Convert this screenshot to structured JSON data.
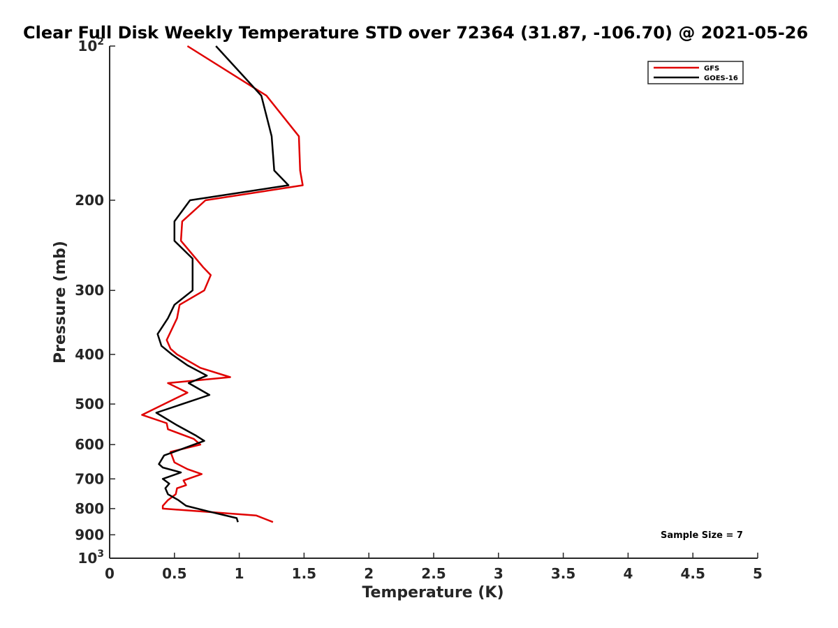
{
  "chart_data": {
    "type": "line",
    "title": "Clear Full Disk Weekly Temperature STD over 72364 (31.87, -106.70) @ 2021-05-26",
    "xlabel": "Temperature (K)",
    "ylabel": "Pressure (mb)",
    "xlim": [
      0,
      5
    ],
    "ylim": [
      100,
      1000
    ],
    "yscale": "log",
    "y_reversed": true,
    "grid": false,
    "legend_position": "top-right",
    "x_ticks": [
      {
        "value": 0,
        "label": "0"
      },
      {
        "value": 0.5,
        "label": "0.5"
      },
      {
        "value": 1,
        "label": "1"
      },
      {
        "value": 1.5,
        "label": "1.5"
      },
      {
        "value": 2,
        "label": "2"
      },
      {
        "value": 2.5,
        "label": "2.5"
      },
      {
        "value": 3,
        "label": "3"
      },
      {
        "value": 3.5,
        "label": "3.5"
      },
      {
        "value": 4,
        "label": "4"
      },
      {
        "value": 4.5,
        "label": "4.5"
      },
      {
        "value": 5,
        "label": "5"
      }
    ],
    "y_ticks": [
      {
        "value": 100,
        "base": "10",
        "exp": "2"
      },
      {
        "value": 200,
        "label": "200"
      },
      {
        "value": 300,
        "label": "300"
      },
      {
        "value": 400,
        "label": "400"
      },
      {
        "value": 500,
        "label": "500"
      },
      {
        "value": 600,
        "label": "600"
      },
      {
        "value": 700,
        "label": "700"
      },
      {
        "value": 800,
        "label": "800"
      },
      {
        "value": 900,
        "label": "900"
      },
      {
        "value": 1000,
        "base": "10",
        "exp": "3"
      }
    ],
    "series": [
      {
        "name": "GFS",
        "color": "#e00000",
        "points": [
          [
            0.6,
            100
          ],
          [
            1.21,
            125
          ],
          [
            1.46,
            150
          ],
          [
            1.47,
            175
          ],
          [
            1.49,
            187
          ],
          [
            0.74,
            200
          ],
          [
            0.56,
            220
          ],
          [
            0.55,
            240
          ],
          [
            0.72,
            270
          ],
          [
            0.78,
            280
          ],
          [
            0.73,
            300
          ],
          [
            0.54,
            320
          ],
          [
            0.52,
            340
          ],
          [
            0.44,
            375
          ],
          [
            0.47,
            390
          ],
          [
            0.52,
            400
          ],
          [
            0.7,
            425
          ],
          [
            0.93,
            443
          ],
          [
            0.45,
            455
          ],
          [
            0.6,
            475
          ],
          [
            0.25,
            525
          ],
          [
            0.44,
            545
          ],
          [
            0.45,
            560
          ],
          [
            0.65,
            585
          ],
          [
            0.7,
            600
          ],
          [
            0.47,
            620
          ],
          [
            0.5,
            650
          ],
          [
            0.6,
            670
          ],
          [
            0.71,
            685
          ],
          [
            0.57,
            705
          ],
          [
            0.59,
            720
          ],
          [
            0.52,
            730
          ],
          [
            0.51,
            750
          ],
          [
            0.45,
            770
          ],
          [
            0.41,
            790
          ],
          [
            0.41,
            800
          ],
          [
            1.13,
            825
          ],
          [
            1.26,
            850
          ]
        ]
      },
      {
        "name": "GOES-16",
        "color": "#000000",
        "points": [
          [
            0.82,
            100
          ],
          [
            1.17,
            125
          ],
          [
            1.25,
            150
          ],
          [
            1.27,
            175
          ],
          [
            1.38,
            187
          ],
          [
            0.62,
            200
          ],
          [
            0.5,
            220
          ],
          [
            0.5,
            240
          ],
          [
            0.64,
            260
          ],
          [
            0.64,
            290
          ],
          [
            0.64,
            300
          ],
          [
            0.5,
            320
          ],
          [
            0.45,
            340
          ],
          [
            0.37,
            365
          ],
          [
            0.4,
            385
          ],
          [
            0.48,
            400
          ],
          [
            0.6,
            420
          ],
          [
            0.75,
            440
          ],
          [
            0.61,
            455
          ],
          [
            0.77,
            480
          ],
          [
            0.36,
            520
          ],
          [
            0.52,
            550
          ],
          [
            0.66,
            575
          ],
          [
            0.73,
            590
          ],
          [
            0.65,
            600
          ],
          [
            0.42,
            630
          ],
          [
            0.38,
            655
          ],
          [
            0.41,
            665
          ],
          [
            0.55,
            680
          ],
          [
            0.41,
            700
          ],
          [
            0.46,
            715
          ],
          [
            0.43,
            730
          ],
          [
            0.45,
            750
          ],
          [
            0.53,
            770
          ],
          [
            0.59,
            790
          ],
          [
            0.76,
            810
          ],
          [
            0.98,
            835
          ],
          [
            0.99,
            850
          ]
        ]
      }
    ],
    "annotations": [
      {
        "text": "Sample Size = 7",
        "position": "bottom-right"
      }
    ]
  }
}
